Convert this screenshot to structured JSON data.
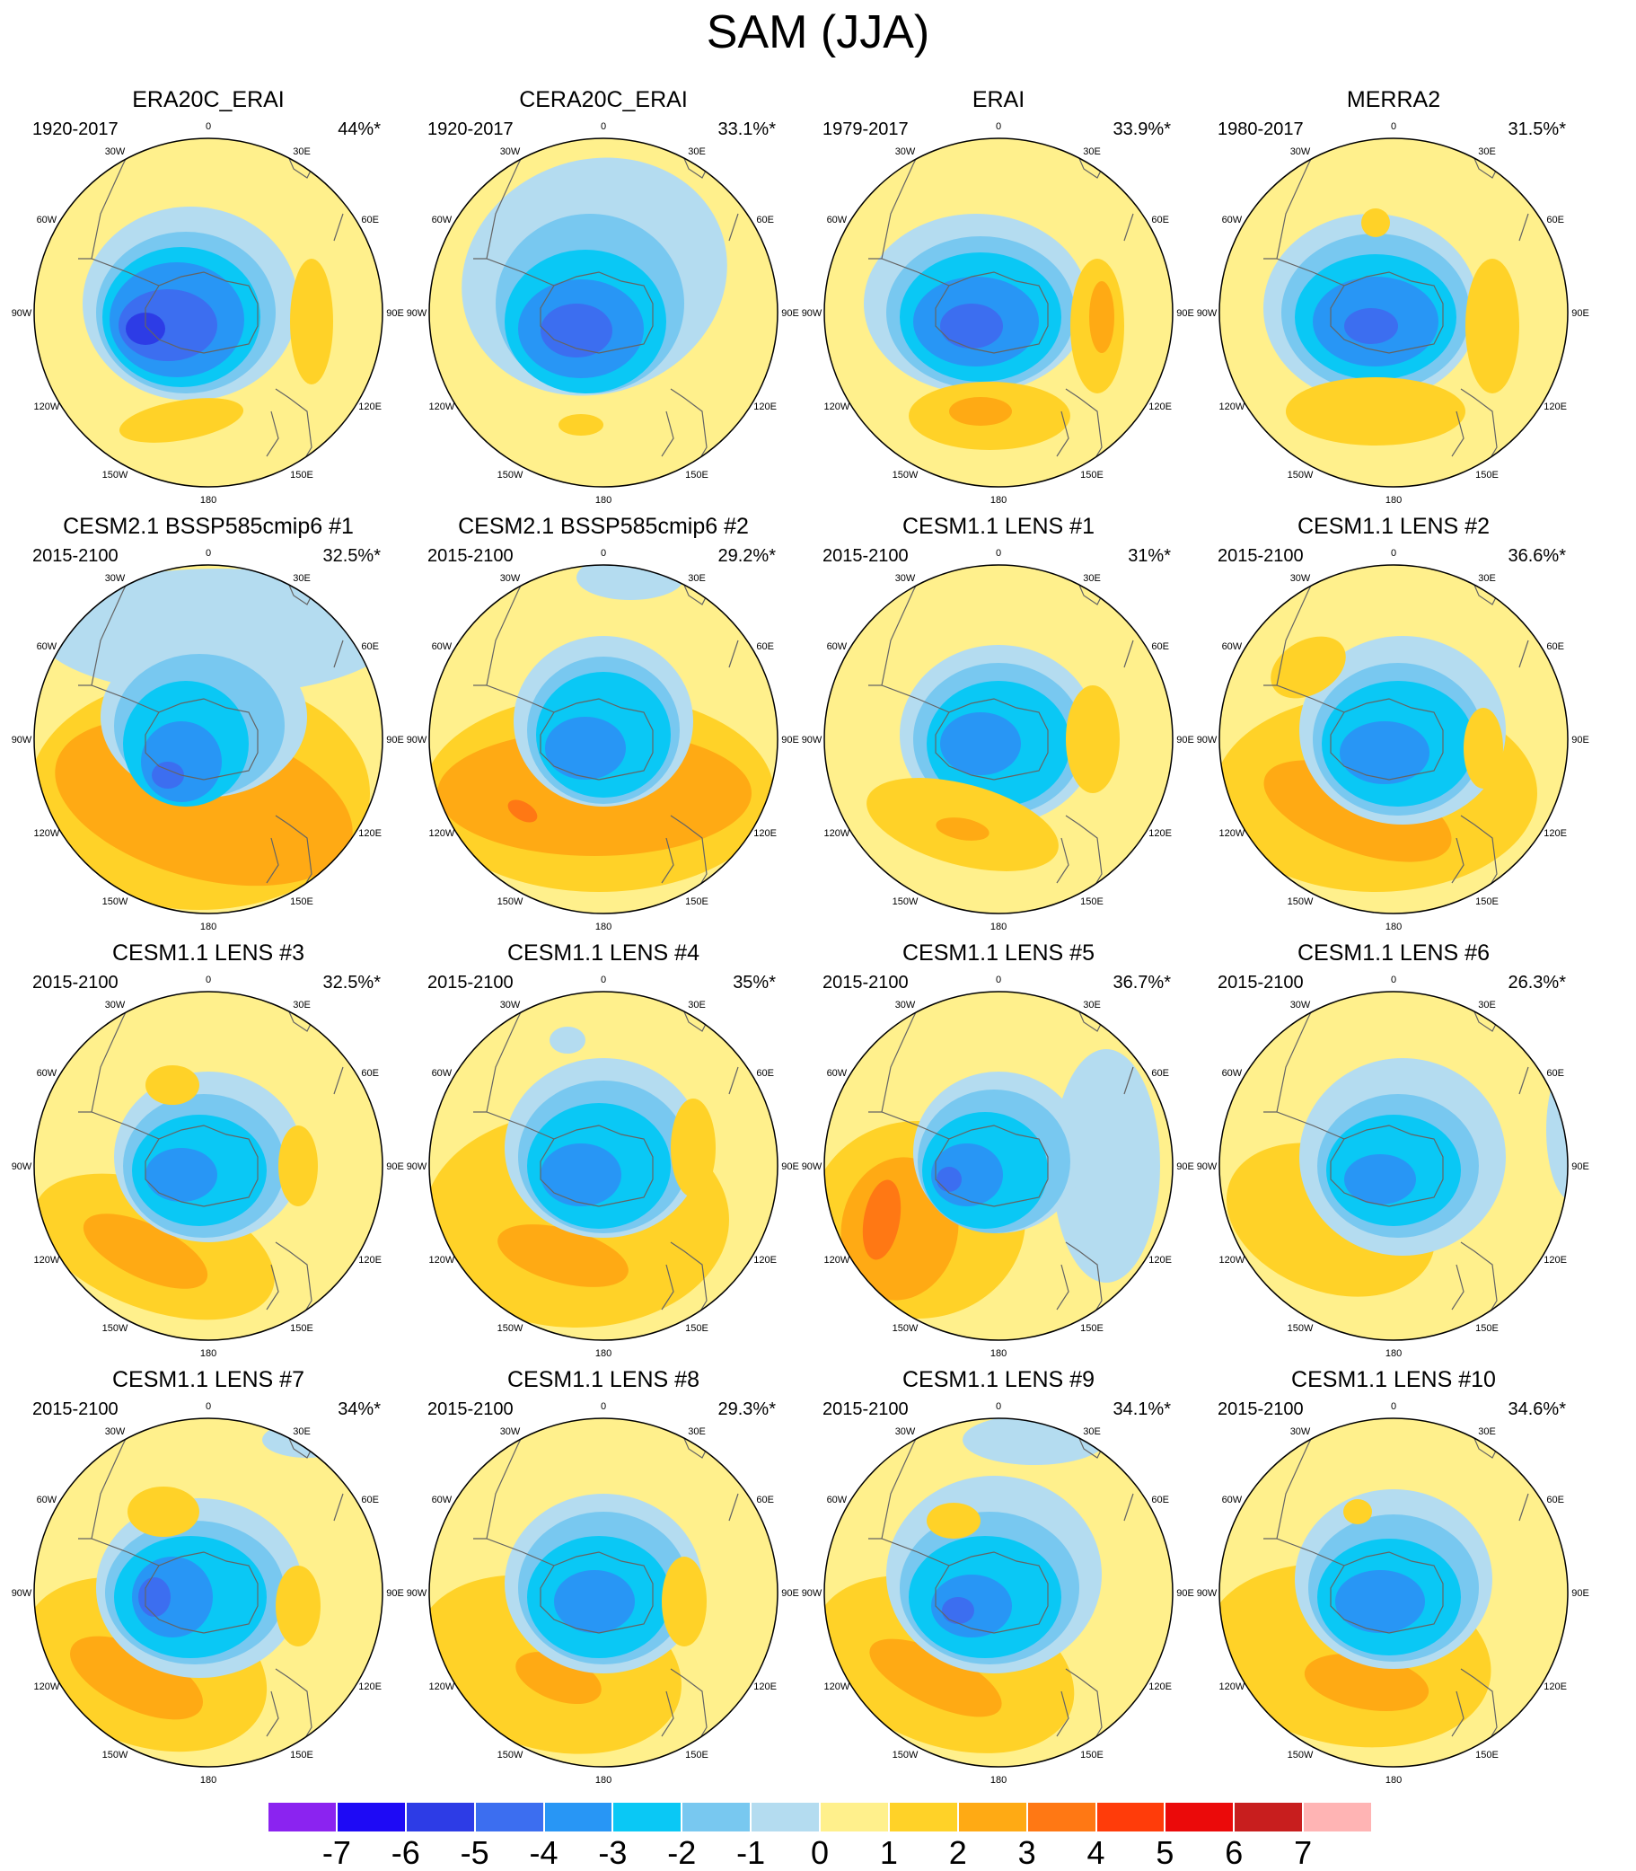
{
  "title": "SAM (JJA)",
  "longitude_labels": [
    "0",
    "30E",
    "60E",
    "90E",
    "120E",
    "150E",
    "180",
    "150W",
    "120W",
    "90W",
    "60W",
    "30W"
  ],
  "panels": [
    {
      "title": "ERA20C_ERAI",
      "period": "1920-2017",
      "percent": "44%*"
    },
    {
      "title": "CERA20C_ERAI",
      "period": "1920-2017",
      "percent": "33.1%*"
    },
    {
      "title": "ERAI",
      "period": "1979-2017",
      "percent": "33.9%*"
    },
    {
      "title": "MERRA2",
      "period": "1980-2017",
      "percent": "31.5%*"
    },
    {
      "title": "CESM2.1 BSSP585cmip6 #1",
      "period": "2015-2100",
      "percent": "32.5%*"
    },
    {
      "title": "CESM2.1 BSSP585cmip6 #2",
      "period": "2015-2100",
      "percent": "29.2%*"
    },
    {
      "title": "CESM1.1 LENS #1",
      "period": "2015-2100",
      "percent": "31%*"
    },
    {
      "title": "CESM1.1 LENS #2",
      "period": "2015-2100",
      "percent": "36.6%*"
    },
    {
      "title": "CESM1.1 LENS #3",
      "period": "2015-2100",
      "percent": "32.5%*"
    },
    {
      "title": "CESM1.1 LENS #4",
      "period": "2015-2100",
      "percent": "35%*"
    },
    {
      "title": "CESM1.1 LENS #5",
      "period": "2015-2100",
      "percent": "36.7%*"
    },
    {
      "title": "CESM1.1 LENS #6",
      "period": "2015-2100",
      "percent": "26.3%*"
    },
    {
      "title": "CESM1.1 LENS #7",
      "period": "2015-2100",
      "percent": "34%*"
    },
    {
      "title": "CESM1.1 LENS #8",
      "period": "2015-2100",
      "percent": "29.3%*"
    },
    {
      "title": "CESM1.1 LENS #9",
      "period": "2015-2100",
      "percent": "34.1%*"
    },
    {
      "title": "CESM1.1 LENS #10",
      "period": "2015-2100",
      "percent": "34.6%*"
    }
  ],
  "colorbar": {
    "labels": [
      "-7",
      "-6",
      "-5",
      "-4",
      "-3",
      "-2",
      "-1",
      "0",
      "1",
      "2",
      "3",
      "4",
      "5",
      "6",
      "7"
    ],
    "colors": [
      "#8b23f0",
      "#1e0af5",
      "#2d3ce6",
      "#3c6ef0",
      "#2896f5",
      "#0ac8f5",
      "#78c8f0",
      "#b4dcf0",
      "#fff08c",
      "#ffd228",
      "#ffaa14",
      "#ff7814",
      "#ff3c0a",
      "#eb0a0a",
      "#c81e1e",
      "#ffb4b4"
    ]
  },
  "map_colors": {
    "ocean_bg": "#fff08c",
    "coast": "#646464",
    "border": "#000000",
    "neg1": "#b4dcf0",
    "neg2": "#78c8f0",
    "neg3": "#0ac8f5",
    "neg4": "#2896f5",
    "neg5": "#3c6ef0",
    "neg6": "#2d3ce6",
    "pos2": "#ffd228",
    "pos3": "#ffaa14",
    "pos4": "#ff7814"
  }
}
